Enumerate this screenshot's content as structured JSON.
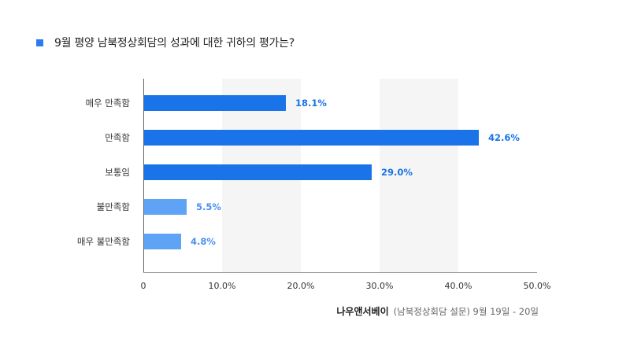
{
  "title": "9월 평양 남북정상회담의 성과에 대한 귀하의 평가는?",
  "colors": {
    "title_marker": "#2b7cf0",
    "bar_strong": "#1a73e8",
    "bar_light": "#5ea3f5",
    "label_strong": "#1a73e8",
    "label_light": "#4a90f0",
    "band": "#f5f5f5"
  },
  "chart_data": {
    "type": "bar",
    "orientation": "horizontal",
    "categories": [
      "매우 만족함",
      "만족함",
      "보통임",
      "불만족함",
      "매우 불만족함"
    ],
    "values": [
      18.1,
      42.6,
      29.0,
      5.5,
      4.8
    ],
    "value_labels": [
      "18.1%",
      "42.6%",
      "29.0%",
      "5.5%",
      "4.8%"
    ],
    "xlim": [
      0,
      50
    ],
    "xticks": [
      0,
      10,
      20,
      30,
      40,
      50
    ],
    "xtick_labels": [
      "0",
      "10.0%",
      "20.0%",
      "30.0%",
      "40.0%",
      "50.0%"
    ],
    "alternating_bands": true,
    "grid": false
  },
  "source": {
    "brand": "나우앤서베이",
    "note": "(남북정상회담 설문) 9월 19일  - 20일"
  }
}
